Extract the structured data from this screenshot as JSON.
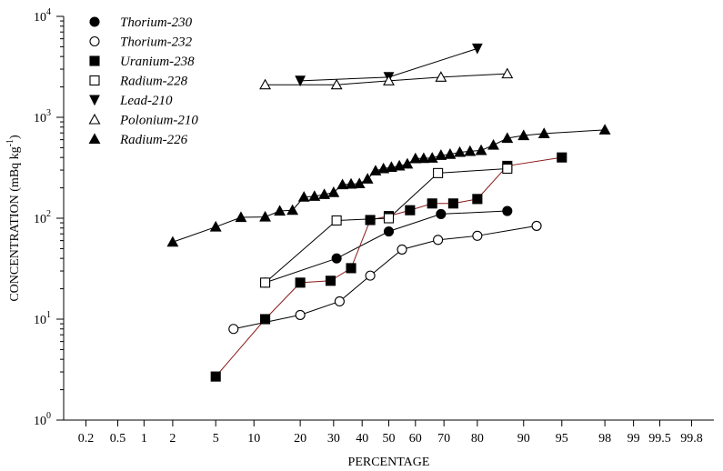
{
  "chart_data": {
    "type": "scatter",
    "xlabel": "PERCENTAGE",
    "ylabel_main": "CONCENTRATION (mBq kg",
    "ylabel_sup": "-1",
    "ylabel_close": ")",
    "x_scale": "probability",
    "y_scale": "log",
    "ylim": [
      1,
      10000
    ],
    "y_ticks": [
      {
        "value": 1,
        "base": "10",
        "exp": "0"
      },
      {
        "value": 10,
        "base": "10",
        "exp": "1"
      },
      {
        "value": 100,
        "base": "10",
        "exp": "2"
      },
      {
        "value": 1000,
        "base": "10",
        "exp": "3"
      },
      {
        "value": 10000,
        "base": "10",
        "exp": "4"
      }
    ],
    "x_ticks": [
      {
        "value": 0.2,
        "label": "0.2"
      },
      {
        "value": 0.5,
        "label": "0.5"
      },
      {
        "value": 1,
        "label": "1"
      },
      {
        "value": 2,
        "label": "2"
      },
      {
        "value": 5,
        "label": "5"
      },
      {
        "value": 10,
        "label": "10"
      },
      {
        "value": 20,
        "label": "20"
      },
      {
        "value": 30,
        "label": "30"
      },
      {
        "value": 40,
        "label": "40"
      },
      {
        "value": 50,
        "label": "50"
      },
      {
        "value": 60,
        "label": "60"
      },
      {
        "value": 70,
        "label": "70"
      },
      {
        "value": 80,
        "label": "80"
      },
      {
        "value": 90,
        "label": "90"
      },
      {
        "value": 95,
        "label": "95"
      },
      {
        "value": 98,
        "label": "98"
      },
      {
        "value": 99,
        "label": "99"
      },
      {
        "value": 99.5,
        "label": "99.5"
      },
      {
        "value": 99.8,
        "label": "99.8"
      }
    ],
    "legend_position": "top-left",
    "series": [
      {
        "name": "Thorium-230",
        "marker": "circle-filled",
        "color": "#000000",
        "x": [
          12,
          31,
          50,
          69,
          87
        ],
        "y": [
          23,
          40,
          74,
          110,
          118
        ]
      },
      {
        "name": "Thorium-232",
        "marker": "circle-open",
        "color": "#000000",
        "x": [
          7,
          20,
          32,
          43,
          55,
          68,
          80,
          92
        ],
        "y": [
          8,
          11,
          15,
          27,
          49,
          61,
          67,
          84
        ]
      },
      {
        "name": "Uranium-238",
        "marker": "square-filled",
        "color": "#8b1a1a",
        "x": [
          5,
          12,
          20,
          29,
          36,
          43,
          50,
          58,
          66,
          73,
          80,
          87,
          95
        ],
        "y": [
          2.7,
          10,
          23,
          24,
          32,
          96,
          105,
          120,
          140,
          140,
          155,
          330,
          400
        ]
      },
      {
        "name": "Radium-228",
        "marker": "square-open",
        "color": "#000000",
        "x": [
          12,
          31,
          50,
          68,
          87
        ],
        "y": [
          23,
          95,
          100,
          280,
          310
        ]
      },
      {
        "name": "Lead-210",
        "marker": "triangle-down-filled",
        "color": "#000000",
        "x": [
          20,
          50,
          80
        ],
        "y": [
          2300,
          2500,
          4800
        ]
      },
      {
        "name": "Polonium-210",
        "marker": "triangle-open",
        "color": "#000000",
        "x": [
          12,
          31,
          50,
          69,
          87
        ],
        "y": [
          2100,
          2100,
          2300,
          2500,
          2700
        ]
      },
      {
        "name": "Radium-226",
        "marker": "triangle-filled",
        "color": "#000000",
        "x": [
          2,
          5,
          8,
          12,
          15,
          18,
          21,
          24,
          27,
          30,
          33,
          36,
          39,
          42,
          45,
          48,
          51,
          54,
          57,
          60,
          63,
          66,
          69,
          72,
          75,
          78,
          81,
          84,
          87,
          90,
          93,
          98
        ],
        "y": [
          58,
          82,
          102,
          103,
          118,
          120,
          162,
          165,
          172,
          180,
          215,
          218,
          220,
          245,
          295,
          310,
          320,
          330,
          345,
          390,
          392,
          395,
          420,
          430,
          450,
          460,
          470,
          530,
          620,
          660,
          690,
          750
        ]
      }
    ]
  }
}
